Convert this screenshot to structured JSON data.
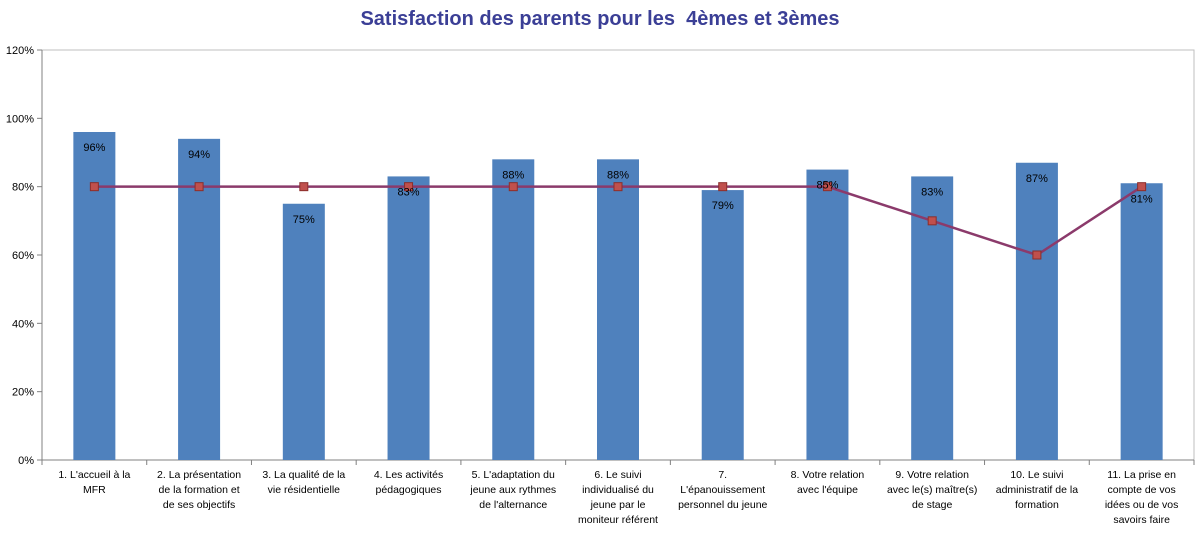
{
  "chart_data": {
    "type": "bar",
    "title": "Satisfaction des parents pour les  4èmes et 3èmes",
    "categories": [
      [
        "1. L'accueil à la",
        "MFR"
      ],
      [
        "2. La présentation",
        "de la formation et",
        "de ses objectifs"
      ],
      [
        "3. La qualité de la",
        "vie résidentielle"
      ],
      [
        "4. Les activités",
        "pédagogiques"
      ],
      [
        "5. L'adaptation du",
        "jeune aux rythmes",
        "de l'alternance"
      ],
      [
        "6. Le suivi",
        "individualisé du",
        "jeune par le",
        "moniteur référent"
      ],
      [
        "7.",
        "L'épanouissement",
        "personnel du jeune"
      ],
      [
        "8. Votre  relation",
        "avec l'équipe"
      ],
      [
        "9.  Votre relation",
        "avec le(s)  maître(s)",
        "de stage"
      ],
      [
        "10. Le suivi",
        "administratif de la",
        "formation"
      ],
      [
        "11. La prise en",
        "compte de vos",
        "idées ou de vos",
        "savoirs faire"
      ]
    ],
    "series": [
      {
        "type": "bar",
        "values": [
          96,
          94,
          75,
          83,
          88,
          88,
          79,
          85,
          83,
          87,
          81
        ],
        "data_labels": [
          "96%",
          "94%",
          "75%",
          "83%",
          "88%",
          "88%",
          "79%",
          "85%",
          "83%",
          "87%",
          "81%"
        ],
        "color": "#4F81BD"
      },
      {
        "type": "line",
        "values": [
          80,
          80,
          80,
          80,
          80,
          80,
          80,
          80,
          70,
          60,
          80
        ],
        "color": "#8B3A6B",
        "marker_color": "#C0504D"
      }
    ],
    "y_ticks": [
      "0%",
      "20%",
      "40%",
      "60%",
      "80%",
      "100%",
      "120%"
    ],
    "ylim": [
      0,
      120
    ],
    "grid": false,
    "legend": "none"
  }
}
